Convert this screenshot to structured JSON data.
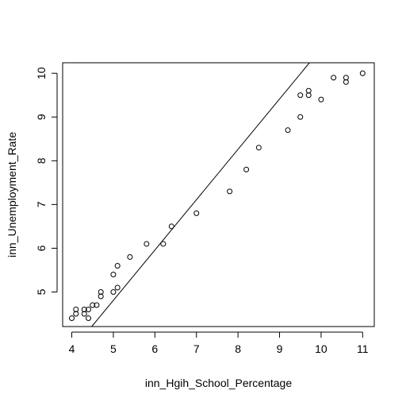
{
  "chart_data": {
    "type": "scatter",
    "title": "",
    "xlabel": "inn_Hgih_School_Percentage",
    "ylabel": "inn_Unemployment_Rate",
    "xlim": [
      3.78,
      11.28
    ],
    "ylim": [
      4.21,
      10.24
    ],
    "xticks": [
      4,
      5,
      6,
      7,
      8,
      9,
      10,
      11
    ],
    "yticks": [
      5,
      6,
      7,
      8,
      9,
      10
    ],
    "grid": false,
    "legend": "none",
    "colors": {
      "points": "#000000",
      "line": "#000000",
      "frame": "#000000"
    },
    "points": [
      {
        "x": 4.0,
        "y": 4.4
      },
      {
        "x": 4.1,
        "y": 4.5
      },
      {
        "x": 4.1,
        "y": 4.6
      },
      {
        "x": 4.3,
        "y": 4.5
      },
      {
        "x": 4.3,
        "y": 4.6
      },
      {
        "x": 4.4,
        "y": 4.4
      },
      {
        "x": 4.4,
        "y": 4.6
      },
      {
        "x": 4.5,
        "y": 4.7
      },
      {
        "x": 4.6,
        "y": 4.7
      },
      {
        "x": 4.7,
        "y": 4.9
      },
      {
        "x": 4.7,
        "y": 5.0
      },
      {
        "x": 5.0,
        "y": 5.0
      },
      {
        "x": 5.0,
        "y": 5.4
      },
      {
        "x": 5.1,
        "y": 5.1
      },
      {
        "x": 5.1,
        "y": 5.6
      },
      {
        "x": 5.4,
        "y": 5.8
      },
      {
        "x": 5.8,
        "y": 6.1
      },
      {
        "x": 6.2,
        "y": 6.1
      },
      {
        "x": 6.4,
        "y": 6.5
      },
      {
        "x": 7.0,
        "y": 6.8
      },
      {
        "x": 7.8,
        "y": 7.3
      },
      {
        "x": 8.2,
        "y": 7.8
      },
      {
        "x": 8.5,
        "y": 8.3
      },
      {
        "x": 9.2,
        "y": 8.7
      },
      {
        "x": 9.5,
        "y": 9.0
      },
      {
        "x": 9.5,
        "y": 9.5
      },
      {
        "x": 9.7,
        "y": 9.5
      },
      {
        "x": 9.7,
        "y": 9.6
      },
      {
        "x": 10.0,
        "y": 9.4
      },
      {
        "x": 10.3,
        "y": 9.9
      },
      {
        "x": 10.6,
        "y": 9.8
      },
      {
        "x": 10.6,
        "y": 9.9
      },
      {
        "x": 11.0,
        "y": 10.0
      }
    ],
    "reference_line": {
      "x": [
        4.48,
        9.72
      ],
      "y": [
        4.21,
        10.24
      ]
    }
  }
}
